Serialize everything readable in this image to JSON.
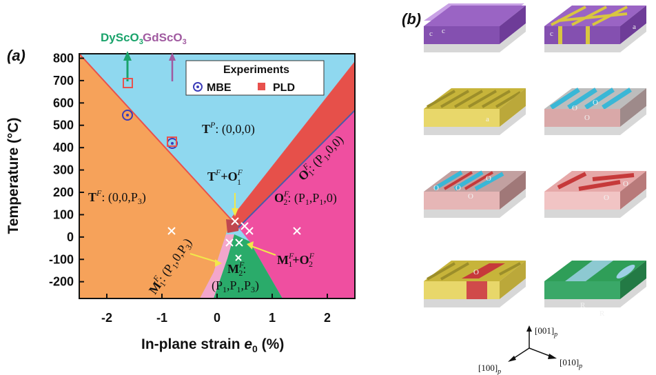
{
  "panel_a": {
    "label": "(a)",
    "xlabel": "In-plane strain e0 (%)",
    "xlabel_main": "In-plane strain ",
    "xlabel_var": "e",
    "xlabel_sub": "0",
    "xlabel_unit": " (%)",
    "ylabel": "Temperature (°C)",
    "x_ticks": [
      "-2",
      "-1",
      "0",
      "1",
      "2"
    ],
    "y_ticks": [
      "800",
      "700",
      "600",
      "500",
      "400",
      "300",
      "200",
      "100",
      "0",
      "-100",
      "-200"
    ],
    "substrates": [
      {
        "name": "DyScO",
        "sub": "3",
        "color": "#1aa36b"
      },
      {
        "name": "GdScO",
        "sub": "3",
        "color": "#a05aa0"
      }
    ],
    "legend": {
      "title": "Experiments",
      "items": [
        {
          "label": "MBE",
          "marker": "circle-dot",
          "color": "#3b3bb8"
        },
        {
          "label": "PLD",
          "marker": "square",
          "color": "#e8514d"
        }
      ]
    },
    "phases": {
      "tp": {
        "sym": "T",
        "sup": "P",
        "rest": ": (0,0,0)"
      },
      "tf": {
        "sym": "T",
        "sup": "F",
        "rest": ": (0,0,P",
        "sub": "3",
        "close": ")"
      },
      "o1": {
        "sym": "O",
        "sup": "F",
        "sub": "1",
        "rest": ": (P",
        "sub2": "1",
        "close": ",0,0)"
      },
      "o2": {
        "sym": "O",
        "sup": "F",
        "sub": "2",
        "rest": ": (P",
        "sub2": "1",
        "mid": ",P",
        "sub3": "1",
        "close": ",0)"
      },
      "to": {
        "a": "T",
        "asup": "F",
        "plus": "+O",
        "bsup": "F",
        "bsub": "1"
      },
      "m1": {
        "sym": "M",
        "sup": "F",
        "sub": "1",
        "rest": ": (P",
        "sub2": "1",
        "mid": ",0,P",
        "sub3": "3",
        "close": ")"
      },
      "m2": {
        "sym": "M",
        "sup": "F",
        "sub": "2",
        "rest": ":"
      },
      "m2b": {
        "text": "(P",
        "s1": "1",
        "t2": ",P",
        "s2": "1",
        "t3": ",P",
        "s3": "3",
        "close": ")"
      },
      "mo": {
        "a": "M",
        "asup": "F",
        "asub": "1",
        "plus": "+O",
        "bsup": "F",
        "bsub": "2"
      }
    },
    "colors": {
      "paraelectric": "#8fd8ef",
      "tetragonal": "#f6a25a",
      "orthorhombic1": "#e6504a",
      "orthorhombic2": "#ef4fa0",
      "monoclinic2": "#2aab6a",
      "monoclinic1": "#f3a6cc"
    }
  },
  "panel_b": {
    "label": "(b)",
    "tiles": [
      {
        "labels": [
          "c",
          "c"
        ]
      },
      {
        "labels": [
          "c",
          "a"
        ]
      },
      {
        "labels": [
          "a"
        ]
      },
      {
        "labels": [
          "O",
          "O",
          "O"
        ]
      },
      {
        "labels": [
          "O",
          "O",
          "O",
          "O"
        ]
      },
      {
        "labels": [
          "O",
          "O"
        ]
      },
      {
        "labels": [
          "O"
        ]
      },
      {
        "labels": [
          "R",
          "R"
        ]
      }
    ],
    "directions": {
      "up": "[001]",
      "left": "[100]",
      "right": "[010]",
      "sub": "p"
    }
  }
}
